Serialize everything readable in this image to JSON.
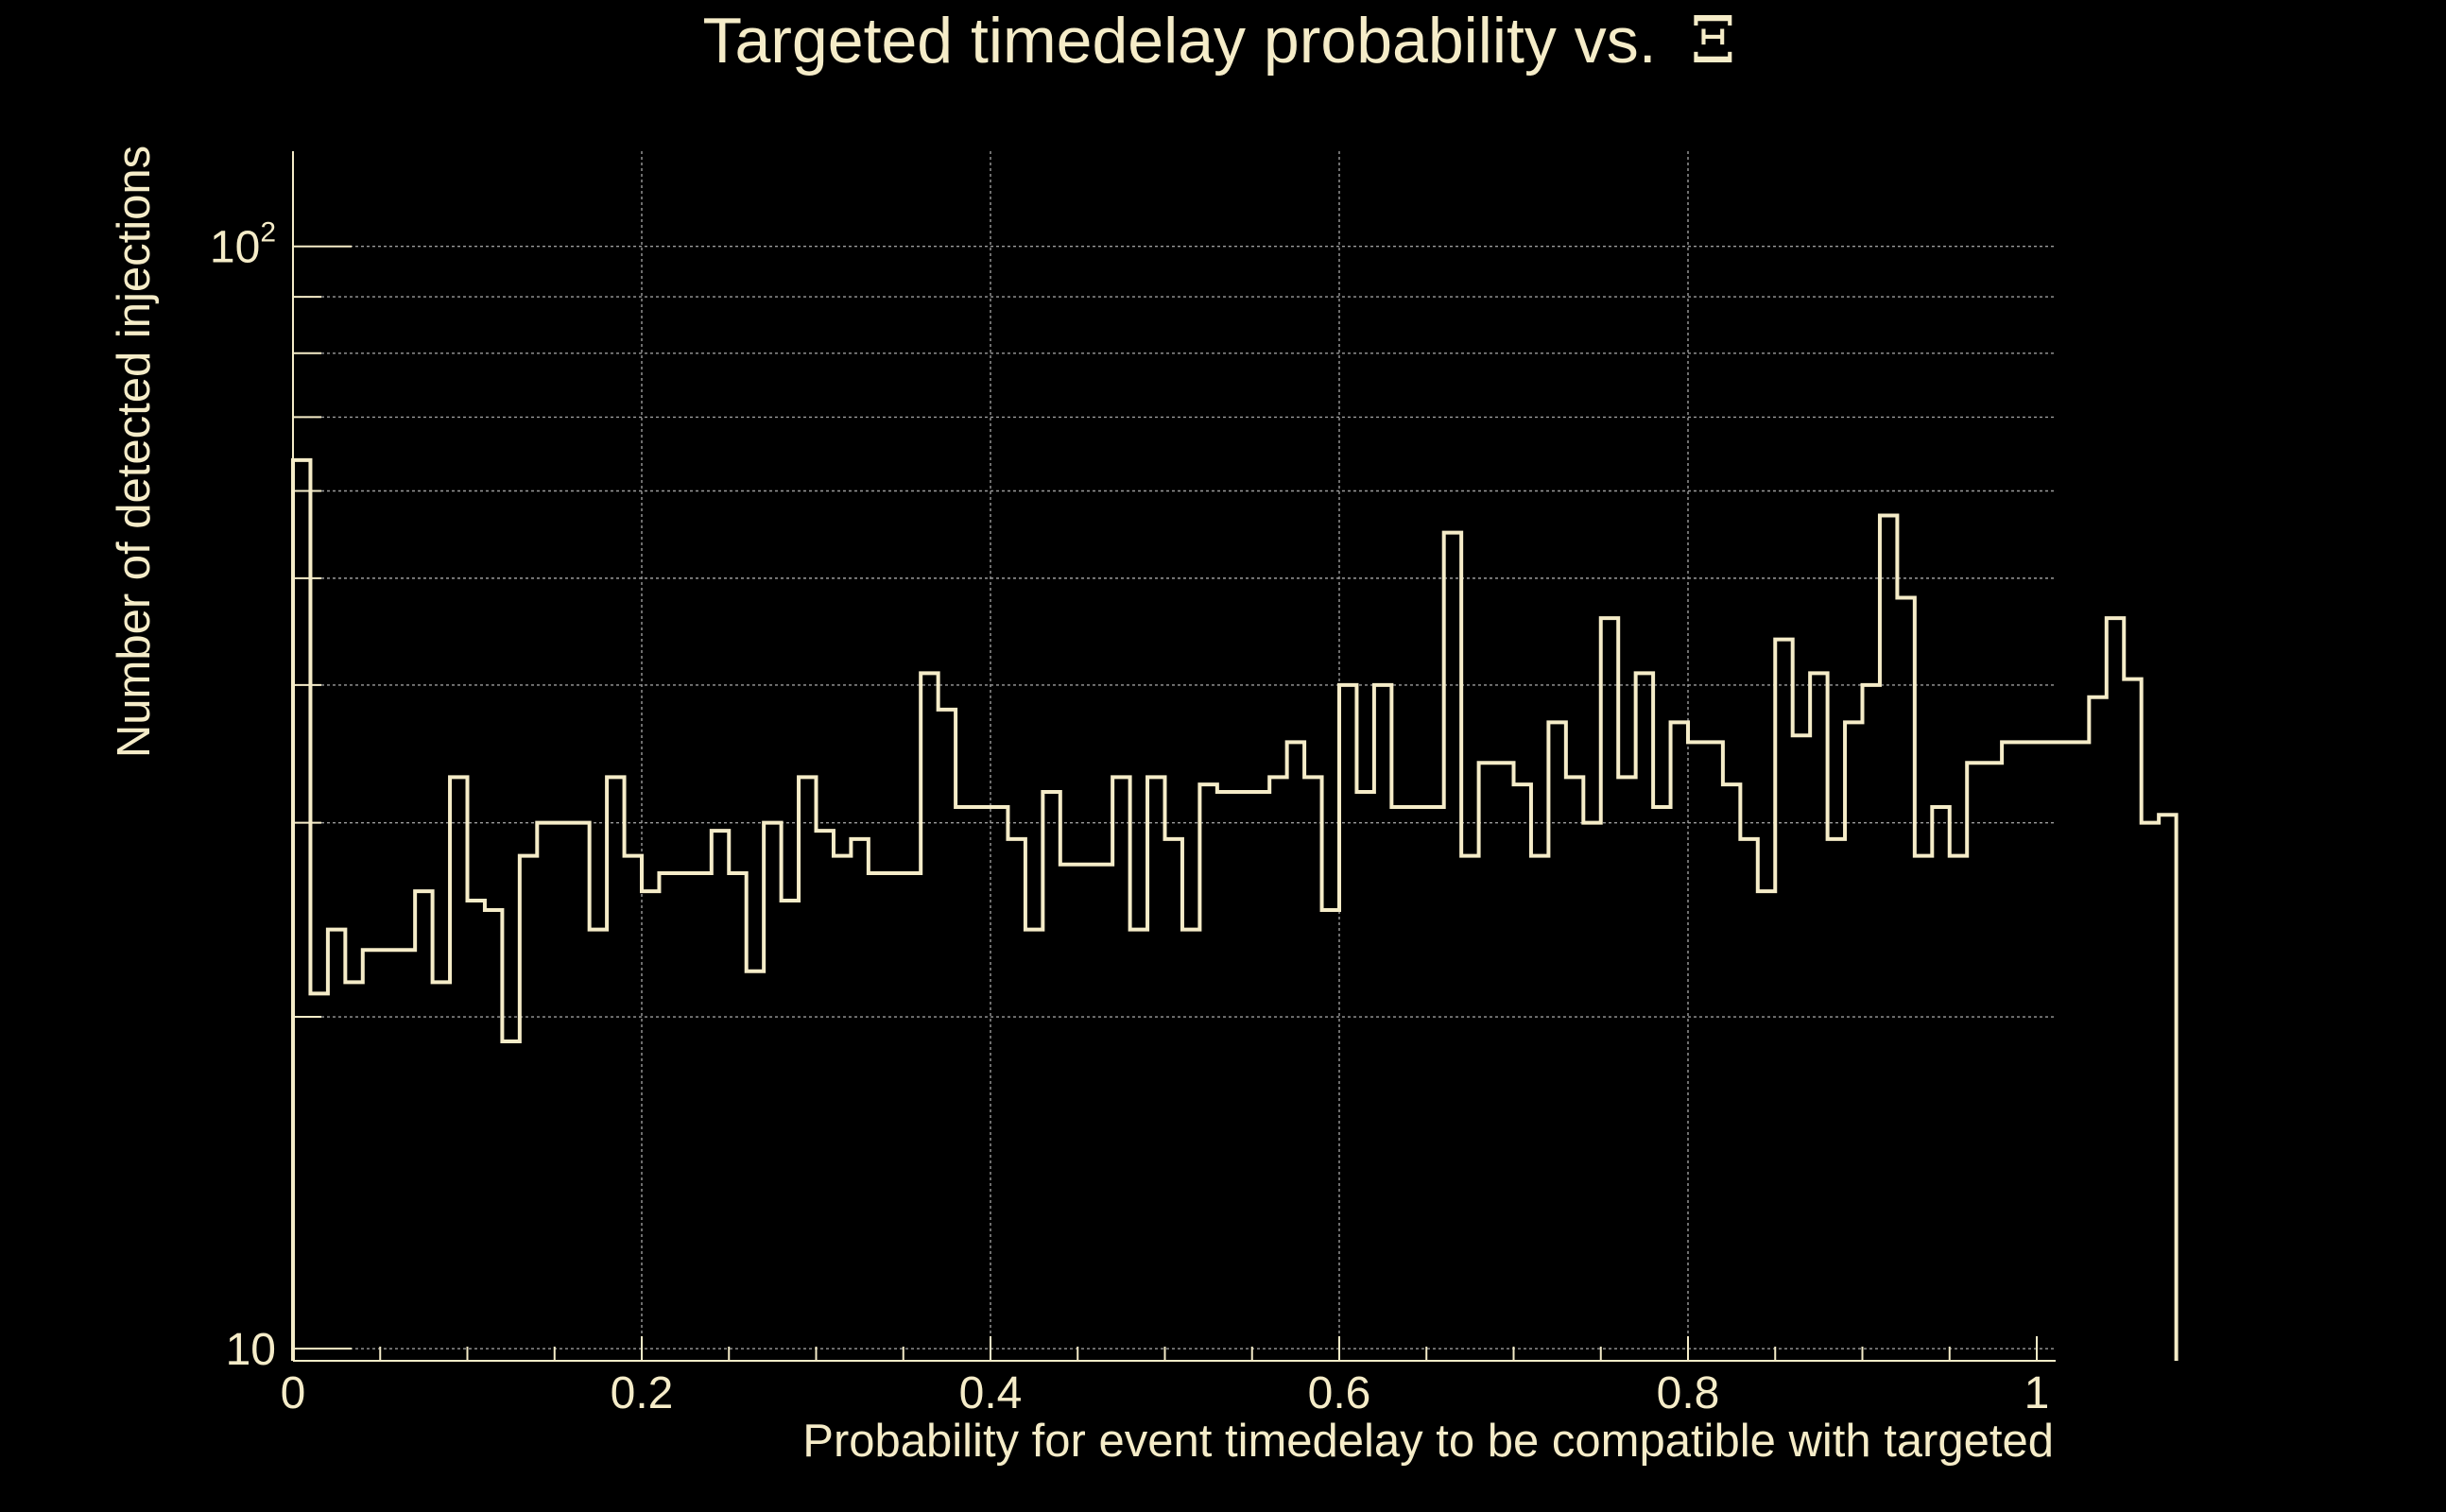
{
  "colors": {
    "background": "#000000",
    "foreground": "#f5ecc8",
    "grid": "#9c9c9c"
  },
  "chart_data": {
    "type": "histogram",
    "title": "Targeted timedelay probability vs.",
    "title_symbol": "Ξ",
    "xlabel": "Probability for event timedelay to be compatible with targeted",
    "ylabel": "Number of detected injections",
    "xlim": [
      0,
      1
    ],
    "ylim": [
      9.75,
      122
    ],
    "y_scale": "log",
    "grid": true,
    "x_ticks": [
      0,
      0.2,
      0.4,
      0.6,
      0.8,
      1
    ],
    "x_tick_labels": [
      "0",
      "0.2",
      "0.4",
      "0.6",
      "0.8",
      "1"
    ],
    "y_major_ticks": [
      {
        "value": 10,
        "base": "10",
        "exp": ""
      },
      {
        "value": 100,
        "base": "10",
        "exp": "2"
      }
    ],
    "bin_width": 0.01,
    "bin_start": 0,
    "values": [
      64,
      21,
      24,
      21.5,
      23,
      23,
      23,
      26,
      21.5,
      33,
      25.5,
      25,
      19,
      28,
      30,
      30,
      30,
      24,
      33,
      28,
      26,
      27,
      27,
      27,
      29.5,
      27,
      22,
      30,
      25.5,
      33,
      29.5,
      28,
      29,
      27,
      27,
      27,
      41,
      38,
      31,
      31,
      31,
      29,
      24,
      32,
      27.5,
      27.5,
      27.5,
      33,
      24,
      33,
      29,
      24,
      32.5,
      32,
      32,
      32,
      33,
      35.5,
      33,
      25,
      40,
      32,
      40,
      31,
      31,
      31,
      55,
      28,
      34,
      34,
      32.5,
      28,
      37,
      33,
      30,
      46,
      33,
      41,
      31,
      37,
      35.5,
      35.5,
      32.5,
      29,
      26,
      44,
      36,
      41,
      29,
      37,
      40,
      57,
      48,
      28,
      31,
      28,
      34,
      34,
      35.5,
      35.5,
      35.5,
      35.5,
      35.5,
      39,
      46,
      40.5,
      30,
      30.5
    ]
  }
}
